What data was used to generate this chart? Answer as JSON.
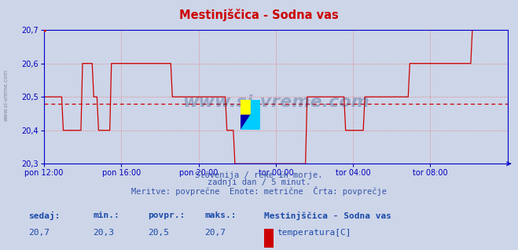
{
  "title": "Mestinjšcica - Sodna vas",
  "title_text": "Mestinjščica - Sodna vas",
  "bg_color": "#cdd5e8",
  "plot_bg_color": "#cdd5e8",
  "line_color": "#cc0000",
  "avg_line_color": "#cc0000",
  "avg_value": 20.48,
  "ylim": [
    20.3,
    20.7
  ],
  "yticks": [
    20.3,
    20.4,
    20.5,
    20.6,
    20.7
  ],
  "ytick_labels": [
    "20,3",
    "20,4",
    "20,5",
    "20,6",
    "20,7"
  ],
  "xlabel_color": "#0000bb",
  "grid_color": "#e08080",
  "grid_style": ":",
  "subtitle_line1": "Slovenija / reke in morje.",
  "subtitle_line2": "zadnji dan / 5 minut.",
  "subtitle_line3": "Meritve: povprečne  Enote: metrične  Črta: povprečje",
  "footer_label1": "sedaj:",
  "footer_label2": "min.:",
  "footer_label3": "povpr.:",
  "footer_label4": "maks.:",
  "footer_val1": "20,7",
  "footer_val2": "20,3",
  "footer_val3": "20,5",
  "footer_val4": "20,7",
  "footer_station": "Mestinjščica - Sodna vas",
  "footer_legend": "temperatura[C]",
  "watermark": "www.si-vreme.com",
  "xtick_labels": [
    "pon 12:00",
    "pon 16:00",
    "pon 20:00",
    "tor 00:00",
    "tor 04:00",
    "tor 08:00"
  ],
  "xtick_positions": [
    0.0,
    0.1667,
    0.3333,
    0.5,
    0.6667,
    0.8333
  ],
  "temperature_data": [
    20.5,
    20.5,
    20.5,
    20.5,
    20.5,
    20.5,
    20.5,
    20.5,
    20.5,
    20.5,
    20.5,
    20.5,
    20.4,
    20.4,
    20.4,
    20.4,
    20.4,
    20.4,
    20.4,
    20.4,
    20.4,
    20.4,
    20.4,
    20.4,
    20.6,
    20.6,
    20.6,
    20.6,
    20.6,
    20.6,
    20.6,
    20.5,
    20.5,
    20.5,
    20.4,
    20.4,
    20.4,
    20.4,
    20.4,
    20.4,
    20.4,
    20.4,
    20.6,
    20.6,
    20.6,
    20.6,
    20.6,
    20.6,
    20.6,
    20.6,
    20.6,
    20.6,
    20.6,
    20.6,
    20.6,
    20.6,
    20.6,
    20.6,
    20.6,
    20.6,
    20.6,
    20.6,
    20.6,
    20.6,
    20.6,
    20.6,
    20.6,
    20.6,
    20.6,
    20.6,
    20.6,
    20.6,
    20.6,
    20.6,
    20.6,
    20.6,
    20.6,
    20.6,
    20.6,
    20.6,
    20.5,
    20.5,
    20.5,
    20.5,
    20.5,
    20.5,
    20.5,
    20.5,
    20.5,
    20.5,
    20.5,
    20.5,
    20.5,
    20.5,
    20.5,
    20.5,
    20.5,
    20.5,
    20.5,
    20.5,
    20.5,
    20.5,
    20.5,
    20.5,
    20.5,
    20.5,
    20.5,
    20.5,
    20.5,
    20.5,
    20.5,
    20.5,
    20.5,
    20.5,
    20.4,
    20.4,
    20.4,
    20.4,
    20.4,
    20.3,
    20.3,
    20.3,
    20.3,
    20.3,
    20.3,
    20.3,
    20.3,
    20.3,
    20.3,
    20.3,
    20.3,
    20.3,
    20.3,
    20.3,
    20.3,
    20.3,
    20.3,
    20.3,
    20.3,
    20.3,
    20.3,
    20.3,
    20.3,
    20.3,
    20.3,
    20.3,
    20.3,
    20.3,
    20.3,
    20.3,
    20.3,
    20.3,
    20.3,
    20.3,
    20.3,
    20.3,
    20.3,
    20.3,
    20.3,
    20.3,
    20.3,
    20.3,
    20.3,
    20.3,
    20.5,
    20.5,
    20.5,
    20.5,
    20.5,
    20.5,
    20.5,
    20.5,
    20.5,
    20.5,
    20.5,
    20.5,
    20.5,
    20.5,
    20.5,
    20.5,
    20.5,
    20.5,
    20.5,
    20.5,
    20.5,
    20.5,
    20.5,
    20.5,
    20.4,
    20.4,
    20.4,
    20.4,
    20.4,
    20.4,
    20.4,
    20.4,
    20.4,
    20.4,
    20.4,
    20.4,
    20.5,
    20.5,
    20.5,
    20.5,
    20.5,
    20.5,
    20.5,
    20.5,
    20.5,
    20.5,
    20.5,
    20.5,
    20.5,
    20.5,
    20.5,
    20.5,
    20.5,
    20.5,
    20.5,
    20.5,
    20.5,
    20.5,
    20.5,
    20.5,
    20.5,
    20.5,
    20.5,
    20.5,
    20.6,
    20.6,
    20.6,
    20.6,
    20.6,
    20.6,
    20.6,
    20.6,
    20.6,
    20.6,
    20.6,
    20.6,
    20.6,
    20.6,
    20.6,
    20.6,
    20.6,
    20.6,
    20.6,
    20.6,
    20.6,
    20.6,
    20.6,
    20.6,
    20.6,
    20.6,
    20.6,
    20.6,
    20.6,
    20.6,
    20.6,
    20.6,
    20.6,
    20.6,
    20.6,
    20.6,
    20.6,
    20.6,
    20.6,
    20.7,
    20.7,
    20.7,
    20.7,
    20.7,
    20.7,
    20.7,
    20.7,
    20.7,
    20.7,
    20.7,
    20.7,
    20.7,
    20.7,
    20.7,
    20.7,
    20.7,
    20.7,
    20.7,
    20.7,
    20.7,
    20.7,
    20.7
  ]
}
